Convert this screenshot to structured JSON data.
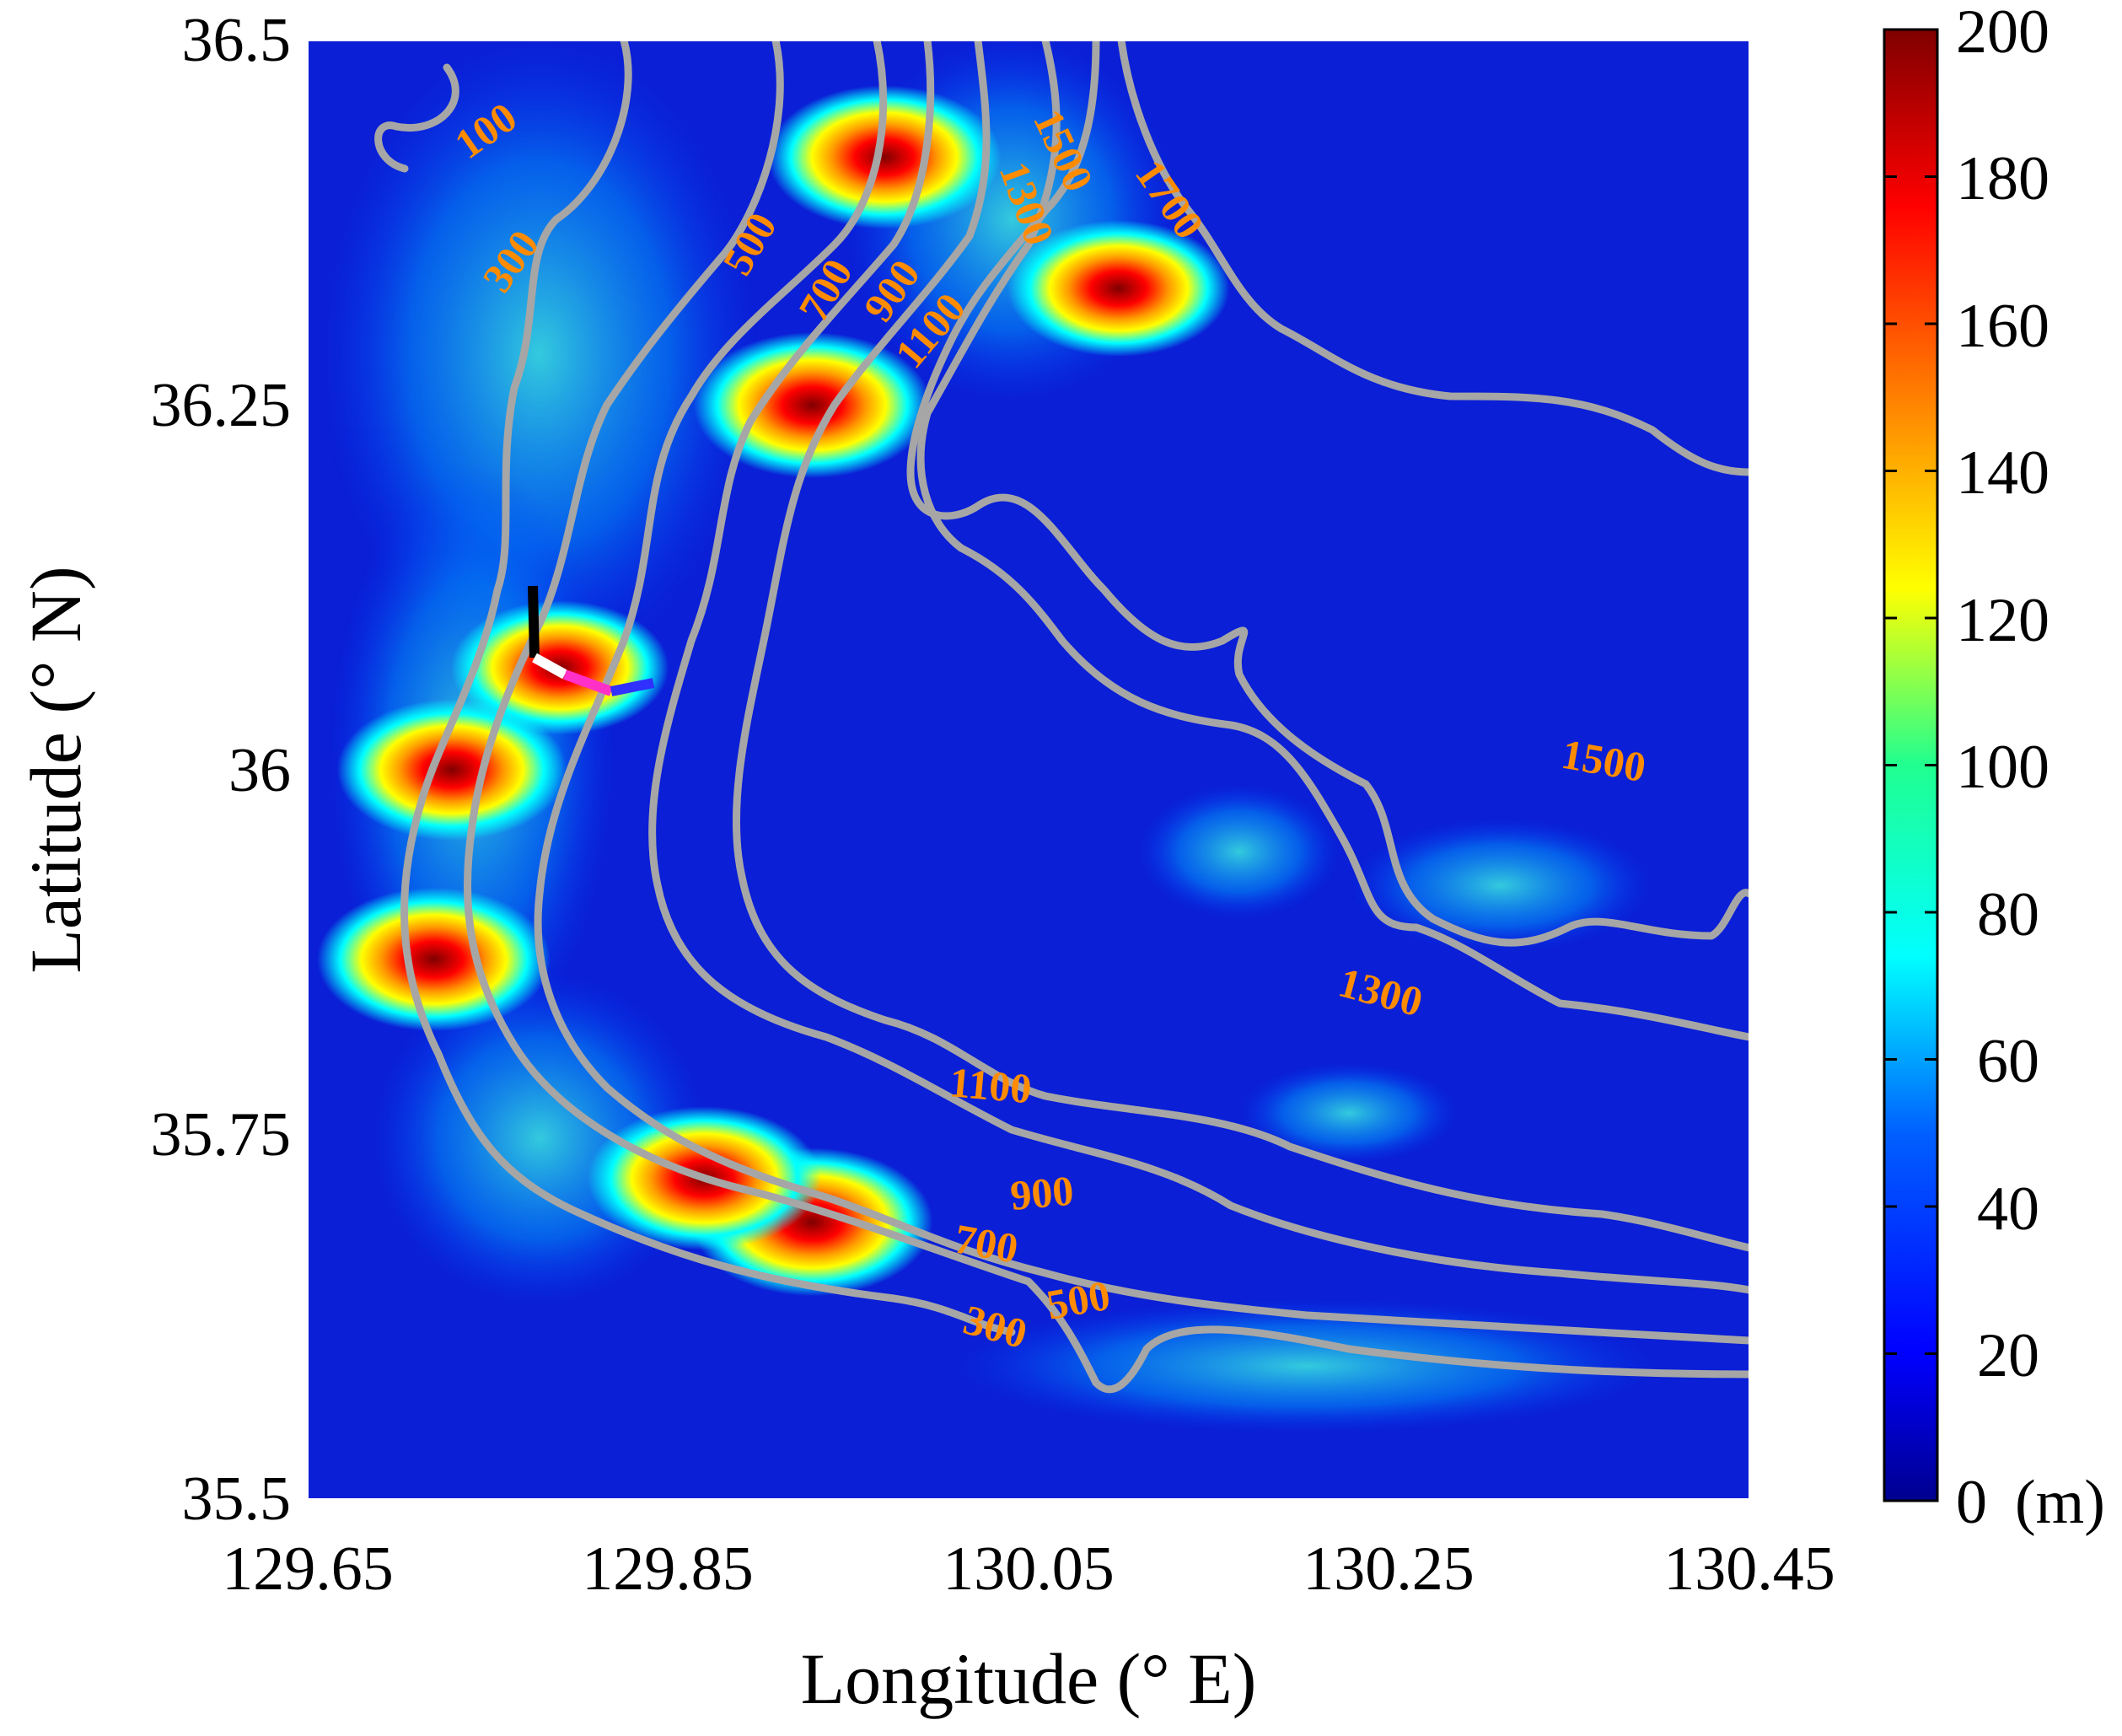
{
  "map": {
    "x_axis": {
      "title": "Longitude (° E)",
      "range": [
        129.65,
        130.45
      ],
      "ticks": [
        "129.65",
        "129.85",
        "130.05",
        "130.25",
        "130.45"
      ]
    },
    "y_axis": {
      "title": "Latitude (° N)",
      "range": [
        35.5,
        36.5
      ],
      "ticks": [
        "36.5",
        "36.25",
        "36",
        "35.75",
        "35.5"
      ]
    },
    "colorbar": {
      "range": [
        0,
        200
      ],
      "ticks": [
        "200",
        "180",
        "160",
        "140",
        "120",
        "100",
        "80",
        "60",
        "40",
        "20",
        "0"
      ],
      "unit": "(m)",
      "colormap": [
        "#00008f",
        "#0000ff",
        "#0080ff",
        "#00ffff",
        "#80ff80",
        "#ffff00",
        "#ff8000",
        "#ff0000",
        "#800000"
      ]
    },
    "background_color": "#0a1fd6",
    "contour_color": "#a6a6a6",
    "contour_label_color": "#ff8c00",
    "contour_labels": [
      "100",
      "300",
      "500",
      "700",
      "900",
      "1100",
      "1300",
      "1500",
      "1700",
      "1500",
      "1300",
      "1100",
      "900",
      "700",
      "500",
      "300"
    ],
    "hotspots": [
      {
        "lon": 129.93,
        "lat": 35.69,
        "value": 200
      },
      {
        "lon": 129.87,
        "lat": 35.72,
        "value": 190
      },
      {
        "lon": 129.72,
        "lat": 35.87,
        "value": 190
      },
      {
        "lon": 129.73,
        "lat": 36.0,
        "value": 185
      },
      {
        "lon": 129.97,
        "lat": 36.42,
        "value": 190
      },
      {
        "lon": 129.93,
        "lat": 36.25,
        "value": 195
      },
      {
        "lon": 130.1,
        "lat": 36.33,
        "value": 175
      },
      {
        "lon": 129.79,
        "lat": 36.07,
        "value": 170
      }
    ]
  }
}
